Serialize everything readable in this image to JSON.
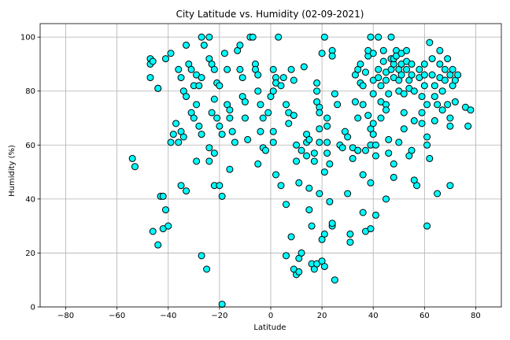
{
  "chart_data": {
    "type": "scatter",
    "title": "City Latitude vs. Humidity (02-09-2021)",
    "xlabel": "Latitude",
    "ylabel": "Humidity (%)",
    "xlim": [
      -90,
      90
    ],
    "ylim": [
      0,
      105
    ],
    "xticks": [
      -80,
      -60,
      -40,
      -20,
      0,
      20,
      40,
      60,
      80
    ],
    "yticks": [
      0,
      20,
      40,
      60,
      80,
      100
    ],
    "grid": true,
    "marker_color": "#00ffff",
    "marker_edge_color": "#000000",
    "points": [
      [
        -54,
        55
      ],
      [
        -53,
        52
      ],
      [
        -47,
        92
      ],
      [
        -47,
        90
      ],
      [
        -46,
        91
      ],
      [
        -47,
        85
      ],
      [
        -44,
        81
      ],
      [
        -44,
        81
      ],
      [
        -43,
        41
      ],
      [
        -42,
        41
      ],
      [
        -46,
        28
      ],
      [
        -44,
        23
      ],
      [
        -42,
        29
      ],
      [
        -41,
        36
      ],
      [
        -40,
        30
      ],
      [
        -41,
        92
      ],
      [
        -39,
        94
      ],
      [
        -38,
        64
      ],
      [
        -37,
        68
      ],
      [
        -39,
        61
      ],
      [
        -36,
        61
      ],
      [
        -35,
        65
      ],
      [
        -34,
        63
      ],
      [
        -35,
        45
      ],
      [
        -33,
        43
      ],
      [
        -36,
        88
      ],
      [
        -35,
        85
      ],
      [
        -34,
        80
      ],
      [
        -33,
        78
      ],
      [
        -33,
        97
      ],
      [
        -32,
        90
      ],
      [
        -31,
        88
      ],
      [
        -30,
        82
      ],
      [
        -29,
        86
      ],
      [
        -31,
        72
      ],
      [
        -30,
        70
      ],
      [
        -29,
        75
      ],
      [
        -28,
        82
      ],
      [
        -27,
        85
      ],
      [
        -27,
        100
      ],
      [
        -26,
        97
      ],
      [
        -28,
        67
      ],
      [
        -27,
        64
      ],
      [
        -29,
        54
      ],
      [
        -27,
        19
      ],
      [
        -25,
        14
      ],
      [
        -24,
        100
      ],
      [
        -24,
        92
      ],
      [
        -23,
        90
      ],
      [
        -22,
        88
      ],
      [
        -23,
        72
      ],
      [
        -22,
        77
      ],
      [
        -21,
        83
      ],
      [
        -20,
        82
      ],
      [
        -21,
        70
      ],
      [
        -20,
        67
      ],
      [
        -19,
        64
      ],
      [
        -22,
        57
      ],
      [
        -24,
        54
      ],
      [
        -24,
        59
      ],
      [
        -22,
        45
      ],
      [
        -20,
        45
      ],
      [
        -19,
        41
      ],
      [
        -19,
        1
      ],
      [
        -18,
        94
      ],
      [
        -17,
        88
      ],
      [
        -17,
        75
      ],
      [
        -16,
        73
      ],
      [
        -16,
        70
      ],
      [
        -15,
        65
      ],
      [
        -14,
        61
      ],
      [
        -16,
        51
      ],
      [
        -13,
        95
      ],
      [
        -12,
        97
      ],
      [
        -12,
        88
      ],
      [
        -11,
        85
      ],
      [
        -11,
        78
      ],
      [
        -10,
        76
      ],
      [
        -10,
        70
      ],
      [
        -9,
        62
      ],
      [
        -8,
        100
      ],
      [
        -7,
        100
      ],
      [
        -6,
        90
      ],
      [
        -6,
        88
      ],
      [
        -5,
        86
      ],
      [
        -5,
        80
      ],
      [
        -4,
        75
      ],
      [
        -3,
        70
      ],
      [
        -4,
        65
      ],
      [
        -5,
        53
      ],
      [
        -3,
        59
      ],
      [
        -2,
        58
      ],
      [
        -1,
        72
      ],
      [
        0,
        78
      ],
      [
        1,
        80
      ],
      [
        1,
        88
      ],
      [
        2,
        85
      ],
      [
        2,
        83
      ],
      [
        1,
        65
      ],
      [
        1,
        61
      ],
      [
        2,
        49
      ],
      [
        3,
        100
      ],
      [
        4,
        82
      ],
      [
        5,
        85
      ],
      [
        4,
        45
      ],
      [
        6,
        75
      ],
      [
        7,
        68
      ],
      [
        7,
        72
      ],
      [
        6,
        38
      ],
      [
        6,
        19
      ],
      [
        8,
        88
      ],
      [
        9,
        84
      ],
      [
        9,
        71
      ],
      [
        8,
        26
      ],
      [
        9,
        14
      ],
      [
        10,
        12
      ],
      [
        11,
        13
      ],
      [
        10,
        60
      ],
      [
        10,
        54
      ],
      [
        11,
        46
      ],
      [
        11,
        18
      ],
      [
        12,
        58
      ],
      [
        12,
        20
      ],
      [
        13,
        89
      ],
      [
        14,
        64
      ],
      [
        14,
        61
      ],
      [
        15,
        62
      ],
      [
        14,
        56
      ],
      [
        15,
        44
      ],
      [
        15,
        36
      ],
      [
        16,
        30
      ],
      [
        16,
        16
      ],
      [
        17,
        14
      ],
      [
        18,
        16
      ],
      [
        17,
        57
      ],
      [
        17,
        54
      ],
      [
        18,
        76
      ],
      [
        18,
        80
      ],
      [
        18,
        83
      ],
      [
        19,
        74
      ],
      [
        19,
        66
      ],
      [
        19,
        72
      ],
      [
        19,
        61
      ],
      [
        20,
        94
      ],
      [
        19,
        42
      ],
      [
        20,
        25
      ],
      [
        21,
        27
      ],
      [
        20,
        17
      ],
      [
        21,
        15
      ],
      [
        21,
        100
      ],
      [
        22,
        70
      ],
      [
        22,
        67
      ],
      [
        22,
        61
      ],
      [
        22,
        57
      ],
      [
        21,
        50
      ],
      [
        23,
        53
      ],
      [
        23,
        39
      ],
      [
        24,
        30
      ],
      [
        24,
        31
      ],
      [
        24,
        95
      ],
      [
        24,
        93
      ],
      [
        25,
        79
      ],
      [
        25,
        10
      ],
      [
        26,
        75
      ],
      [
        27,
        60
      ],
      [
        28,
        59
      ],
      [
        29,
        65
      ],
      [
        30,
        63
      ],
      [
        30,
        42
      ],
      [
        31,
        27
      ],
      [
        31,
        24
      ],
      [
        32,
        59
      ],
      [
        32,
        55
      ],
      [
        33,
        86
      ],
      [
        33,
        76
      ],
      [
        34,
        58
      ],
      [
        34,
        70
      ],
      [
        34,
        88
      ],
      [
        35,
        90
      ],
      [
        35,
        83
      ],
      [
        36,
        82
      ],
      [
        36,
        75
      ],
      [
        36,
        35
      ],
      [
        36,
        49
      ],
      [
        37,
        58
      ],
      [
        37,
        28
      ],
      [
        38,
        93
      ],
      [
        38,
        95
      ],
      [
        39,
        100
      ],
      [
        38,
        71
      ],
      [
        39,
        66
      ],
      [
        39,
        60
      ],
      [
        39,
        46
      ],
      [
        39,
        29
      ],
      [
        40,
        94
      ],
      [
        40,
        84
      ],
      [
        40,
        79
      ],
      [
        40,
        68
      ],
      [
        40,
        64
      ],
      [
        41,
        60
      ],
      [
        41,
        56
      ],
      [
        41,
        34
      ],
      [
        42,
        100
      ],
      [
        42,
        88
      ],
      [
        42,
        85
      ],
      [
        43,
        82
      ],
      [
        43,
        76
      ],
      [
        43,
        70
      ],
      [
        44,
        95
      ],
      [
        44,
        91
      ],
      [
        45,
        87
      ],
      [
        45,
        84
      ],
      [
        45,
        75
      ],
      [
        45,
        73
      ],
      [
        46,
        62
      ],
      [
        46,
        57
      ],
      [
        47,
        100
      ],
      [
        47,
        92
      ],
      [
        47,
        88
      ],
      [
        48,
        85
      ],
      [
        48,
        90
      ],
      [
        48,
        92
      ],
      [
        48,
        53
      ],
      [
        48,
        48
      ],
      [
        49,
        95
      ],
      [
        49,
        93
      ],
      [
        50,
        88
      ],
      [
        50,
        84
      ],
      [
        50,
        80
      ],
      [
        51,
        94
      ],
      [
        51,
        90
      ],
      [
        51,
        86
      ],
      [
        52,
        79
      ],
      [
        52,
        72
      ],
      [
        53,
        95
      ],
      [
        53,
        91
      ],
      [
        53,
        88
      ],
      [
        54,
        84
      ],
      [
        54,
        81
      ],
      [
        55,
        90
      ],
      [
        55,
        86
      ],
      [
        56,
        80
      ],
      [
        56,
        69
      ],
      [
        56,
        47
      ],
      [
        57,
        45
      ],
      [
        58,
        88
      ],
      [
        58,
        85
      ],
      [
        59,
        78
      ],
      [
        59,
        72
      ],
      [
        59,
        68
      ],
      [
        60,
        90
      ],
      [
        60,
        86
      ],
      [
        60,
        82
      ],
      [
        61,
        75
      ],
      [
        61,
        63
      ],
      [
        61,
        60
      ],
      [
        62,
        55
      ],
      [
        61,
        30
      ],
      [
        62,
        98
      ],
      [
        63,
        92
      ],
      [
        63,
        86
      ],
      [
        64,
        82
      ],
      [
        64,
        78
      ],
      [
        64,
        69
      ],
      [
        65,
        75
      ],
      [
        65,
        42
      ],
      [
        66,
        95
      ],
      [
        66,
        90
      ],
      [
        66,
        85
      ],
      [
        67,
        80
      ],
      [
        67,
        73
      ],
      [
        68,
        88
      ],
      [
        68,
        84
      ],
      [
        69,
        92
      ],
      [
        69,
        75
      ],
      [
        70,
        86
      ],
      [
        70,
        70
      ],
      [
        70,
        67
      ],
      [
        70,
        45
      ],
      [
        71,
        88
      ],
      [
        71,
        82
      ],
      [
        72,
        84
      ],
      [
        72,
        76
      ],
      [
        73,
        86
      ],
      [
        76,
        74
      ],
      [
        77,
        67
      ],
      [
        78,
        73
      ],
      [
        45,
        40
      ],
      [
        34,
        58
      ],
      [
        37,
        87
      ],
      [
        46,
        79
      ],
      [
        50,
        61
      ],
      [
        52,
        66
      ],
      [
        55,
        58
      ],
      [
        54,
        56
      ]
    ]
  }
}
